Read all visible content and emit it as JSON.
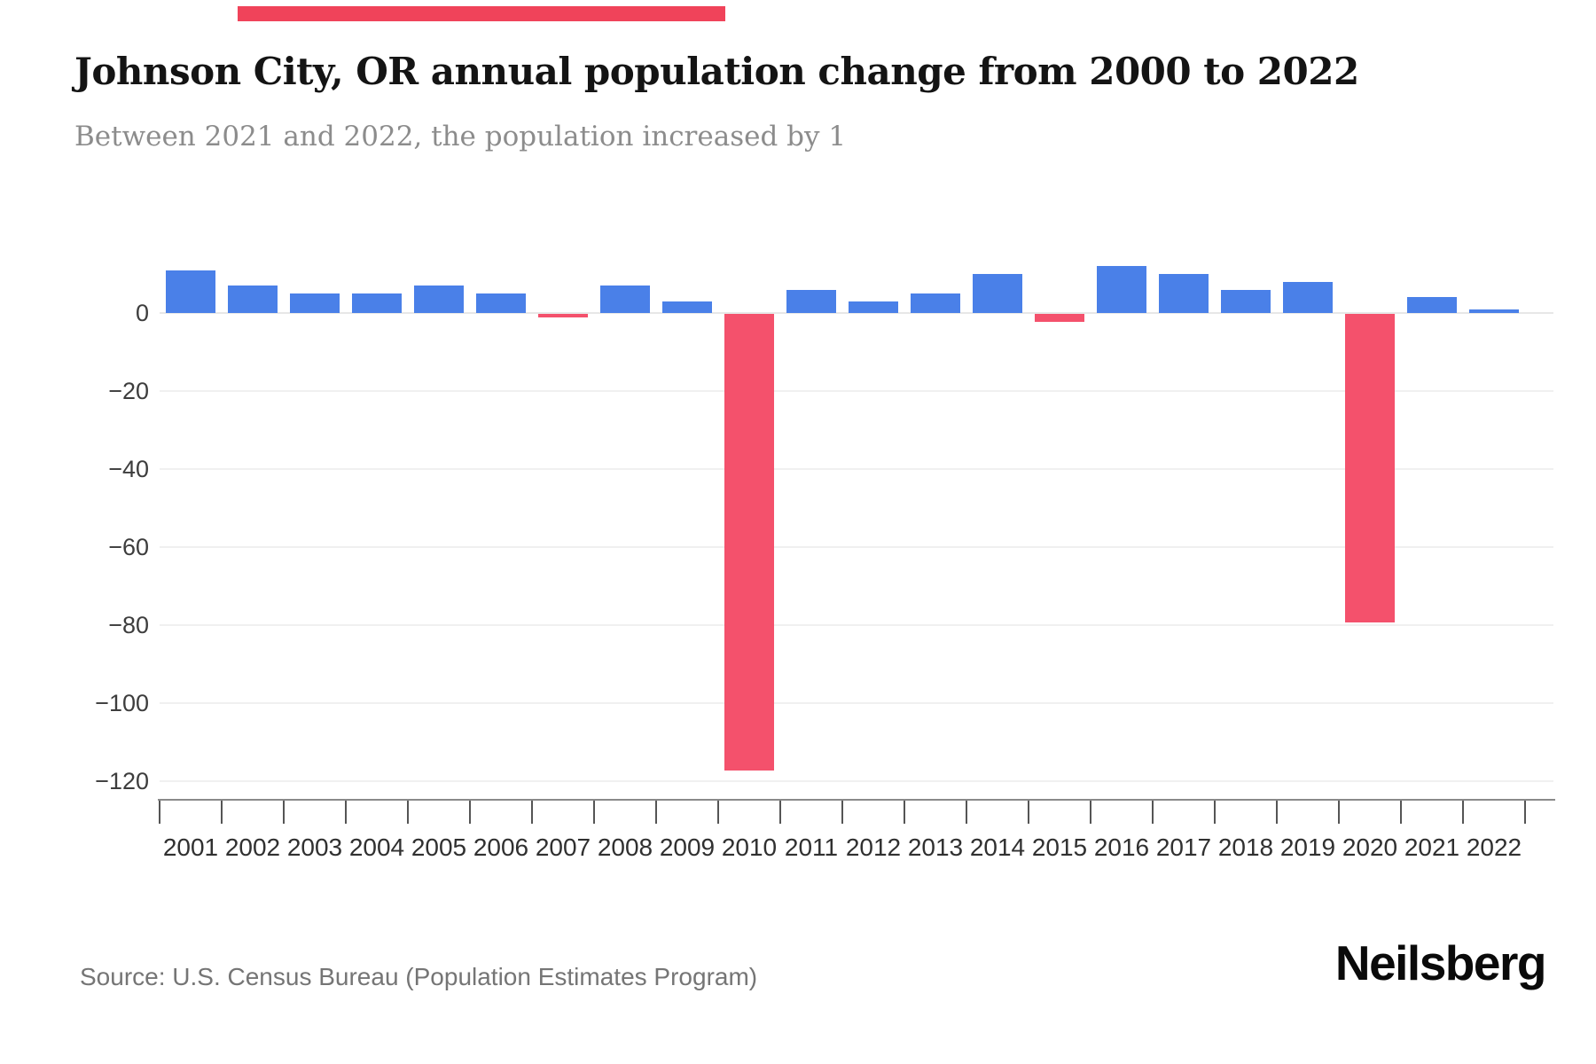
{
  "header": {
    "title": "Johnson City, OR annual population change from 2000 to 2022",
    "subtitle": "Between 2021 and 2022, the population increased by 1"
  },
  "chart_data": {
    "type": "bar",
    "title": "Johnson City, OR annual population change from 2000 to 2022",
    "xlabel": "",
    "ylabel": "",
    "categories": [
      "2001",
      "2002",
      "2003",
      "2004",
      "2005",
      "2006",
      "2007",
      "2008",
      "2009",
      "2010",
      "2011",
      "2012",
      "2013",
      "2014",
      "2015",
      "2016",
      "2017",
      "2018",
      "2019",
      "2020",
      "2021",
      "2022"
    ],
    "values": [
      11,
      7,
      5,
      5,
      7,
      5,
      -1,
      7,
      3,
      -117,
      6,
      3,
      5,
      10,
      -2,
      12,
      10,
      6,
      8,
      -79,
      4,
      1
    ],
    "series_name": "Annual population change",
    "ylim": [
      -124,
      14
    ],
    "ytick_values": [
      0,
      -20,
      -40,
      -60,
      -80,
      -100,
      -120
    ],
    "ytick_labels": [
      "0",
      "−20",
      "−40",
      "−60",
      "−80",
      "−100",
      "−120"
    ],
    "positive_color": "#4a80e8",
    "negative_color": "#f4516c",
    "grid": "horizontal",
    "legend": "none"
  },
  "footer": {
    "source": "Source: U.S. Census Bureau (Population Estimates Program)",
    "logo": "Neilsberg"
  },
  "decor": {
    "top_strip_color": "#f0435a"
  }
}
